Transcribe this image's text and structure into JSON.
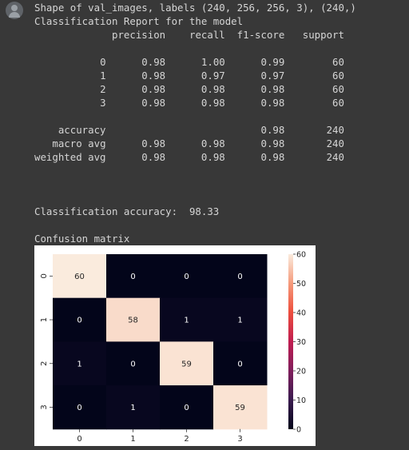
{
  "output": {
    "shape_line": "Shape of val_images, labels (240, 256, 256, 3), (240,)",
    "report_title": "Classification Report for the model",
    "report_header": [
      "precision",
      "recall",
      "f1-score",
      "support"
    ],
    "report_rows": [
      {
        "label": "0",
        "precision": "0.98",
        "recall": "1.00",
        "f1": "0.99",
        "support": "60"
      },
      {
        "label": "1",
        "precision": "0.98",
        "recall": "0.97",
        "f1": "0.97",
        "support": "60"
      },
      {
        "label": "2",
        "precision": "0.98",
        "recall": "0.98",
        "f1": "0.98",
        "support": "60"
      },
      {
        "label": "3",
        "precision": "0.98",
        "recall": "0.98",
        "f1": "0.98",
        "support": "60"
      }
    ],
    "summary_rows": [
      {
        "label": "accuracy",
        "precision": "",
        "recall": "",
        "f1": "0.98",
        "support": "240"
      },
      {
        "label": "macro avg",
        "precision": "0.98",
        "recall": "0.98",
        "f1": "0.98",
        "support": "240"
      },
      {
        "label": "weighted avg",
        "precision": "0.98",
        "recall": "0.98",
        "f1": "0.98",
        "support": "240"
      }
    ],
    "accuracy_label": "Classification accuracy:",
    "accuracy_value": "98.33",
    "confusion_title": "Confusion matrix"
  },
  "chart_data": {
    "type": "heatmap",
    "title": "",
    "xlabel": "",
    "ylabel": "",
    "x_ticks": [
      "0",
      "1",
      "2",
      "3"
    ],
    "y_ticks": [
      "0",
      "1",
      "2",
      "3"
    ],
    "matrix": [
      [
        60,
        0,
        0,
        0
      ],
      [
        0,
        58,
        1,
        1
      ],
      [
        1,
        0,
        59,
        0
      ],
      [
        0,
        1,
        0,
        59
      ]
    ],
    "colorbar": {
      "min": 0,
      "max": 60,
      "ticks": [
        0,
        10,
        20,
        30,
        40,
        50,
        60
      ]
    },
    "colormap": "rocket"
  }
}
